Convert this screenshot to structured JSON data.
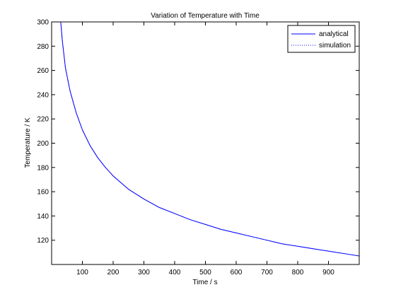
{
  "chart_data": {
    "type": "line",
    "title": "Variation of Temperature with Time",
    "xlabel": "Time / s",
    "ylabel": "Temperature / K",
    "xlim": [
      0,
      1000
    ],
    "ylim": [
      100,
      300
    ],
    "xticks": [
      100,
      200,
      300,
      400,
      500,
      600,
      700,
      800,
      900
    ],
    "yticks": [
      120,
      140,
      160,
      180,
      200,
      220,
      240,
      260,
      280,
      300
    ],
    "grid": false,
    "legend_position": "top-right",
    "series": [
      {
        "name": "analytical",
        "style": "solid",
        "color": "#0000ff",
        "x": [
          29,
          35,
          45,
          60,
          80,
          100,
          125,
          150,
          175,
          200,
          250,
          300,
          350,
          400,
          450,
          500,
          550,
          600,
          650,
          700,
          750,
          800,
          850,
          900,
          950,
          1000
        ],
        "y": [
          302,
          284,
          262,
          243,
          225,
          211,
          198,
          188,
          180,
          173,
          162,
          154,
          147,
          142,
          137,
          133,
          129,
          126,
          123,
          120,
          117,
          115,
          113,
          111,
          109,
          107
        ]
      },
      {
        "name": "simulation",
        "style": "dotted",
        "color": "#0000ff",
        "x": [
          29,
          35,
          45,
          60,
          80,
          100,
          125,
          150,
          175,
          200,
          250,
          300,
          350,
          400,
          450,
          500,
          550,
          600,
          650,
          700,
          750,
          800,
          850,
          900,
          950,
          1000
        ],
        "y": [
          302,
          284,
          262,
          243,
          225,
          211,
          198,
          188,
          180,
          173,
          162,
          154,
          147,
          142,
          137,
          133,
          129,
          126,
          123,
          120,
          117,
          115,
          113,
          111,
          109,
          107
        ]
      }
    ]
  }
}
